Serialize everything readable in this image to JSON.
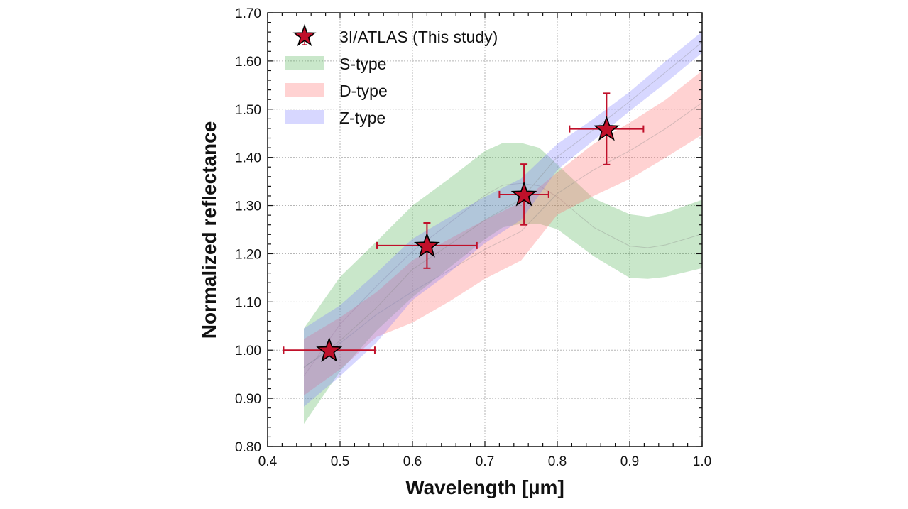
{
  "chart_data": {
    "type": "scatter",
    "title": "",
    "xlabel": "Wavelength [µm]",
    "ylabel": "Normalized reflectance",
    "xlim": [
      0.4,
      1.0
    ],
    "ylim": [
      0.8,
      1.7
    ],
    "xticks": [
      0.4,
      0.5,
      0.6,
      0.7,
      0.8,
      0.9,
      1.0
    ],
    "xtick_labels": [
      "0.4",
      "0.5",
      "0.6",
      "0.7",
      "0.8",
      "0.9",
      "1.0"
    ],
    "yticks": [
      0.8,
      0.9,
      1.0,
      1.1,
      1.2,
      1.3,
      1.4,
      1.5,
      1.6,
      1.7
    ],
    "ytick_labels": [
      "0.80",
      "0.90",
      "1.00",
      "1.10",
      "1.20",
      "1.30",
      "1.40",
      "1.50",
      "1.60",
      "1.70"
    ],
    "minor_tick_step": 0.02,
    "grid": true,
    "legend_position": "top-left",
    "points": {
      "name": "3I/ATLAS (This study)",
      "marker": "star",
      "color": "#c0102a",
      "data": [
        {
          "x": 0.485,
          "y": 1.0,
          "xerr": 0.063,
          "yerr": 0.0
        },
        {
          "x": 0.62,
          "y": 1.217,
          "xerr": 0.069,
          "yerr": 0.047
        },
        {
          "x": 0.754,
          "y": 1.323,
          "xerr": 0.034,
          "yerr": 0.063
        },
        {
          "x": 0.868,
          "y": 1.459,
          "xerr": 0.051,
          "yerr": 0.074
        }
      ]
    },
    "bands": [
      {
        "name": "S-type",
        "color": "#4caf50",
        "x": [
          0.45,
          0.5,
          0.55,
          0.6,
          0.65,
          0.7,
          0.725,
          0.75,
          0.775,
          0.8,
          0.85,
          0.9,
          0.925,
          0.95,
          1.0
        ],
        "upper": [
          1.045,
          1.152,
          1.225,
          1.3,
          1.355,
          1.413,
          1.43,
          1.43,
          1.42,
          1.385,
          1.315,
          1.282,
          1.277,
          1.285,
          1.312
        ],
        "lower": [
          0.847,
          0.956,
          1.04,
          1.11,
          1.17,
          1.23,
          1.255,
          1.262,
          1.262,
          1.251,
          1.195,
          1.15,
          1.148,
          1.152,
          1.17
        ]
      },
      {
        "name": "D-type",
        "color": "#ff6b6b",
        "x": [
          0.45,
          0.5,
          0.55,
          0.6,
          0.65,
          0.7,
          0.75,
          0.8,
          0.85,
          0.9,
          0.95,
          1.0
        ],
        "upper": [
          1.023,
          1.068,
          1.12,
          1.186,
          1.23,
          1.27,
          1.307,
          1.369,
          1.428,
          1.472,
          1.52,
          1.58
        ],
        "lower": [
          0.906,
          0.96,
          1.027,
          1.057,
          1.1,
          1.148,
          1.186,
          1.281,
          1.32,
          1.355,
          1.4,
          1.447
        ]
      },
      {
        "name": "Z-type",
        "color": "#7b7bff",
        "x": [
          0.45,
          0.5,
          0.55,
          0.6,
          0.65,
          0.7,
          0.75,
          0.8,
          0.85,
          0.9,
          0.95,
          1.0
        ],
        "upper": [
          1.045,
          1.093,
          1.16,
          1.231,
          1.275,
          1.318,
          1.356,
          1.428,
          1.48,
          1.536,
          1.6,
          1.661
        ],
        "lower": [
          0.883,
          0.946,
          1.015,
          1.104,
          1.16,
          1.222,
          1.27,
          1.374,
          1.435,
          1.496,
          1.555,
          1.617
        ]
      }
    ]
  }
}
